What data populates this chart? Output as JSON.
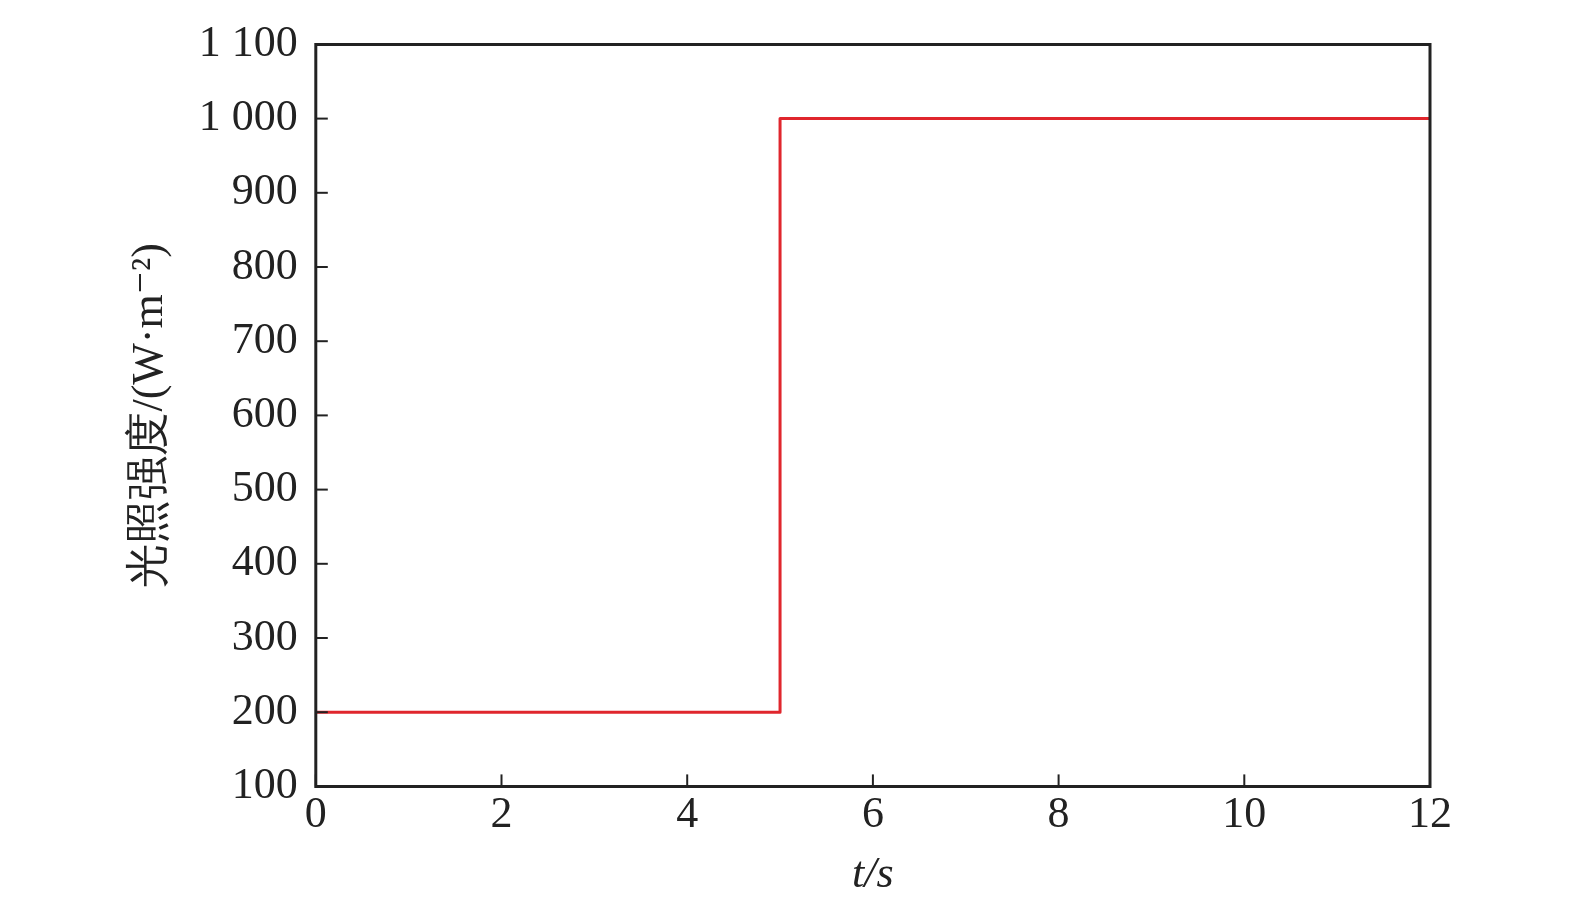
{
  "chart_data": {
    "type": "step",
    "xlabel": "t/s",
    "ylabel": "光照强度/(W·m⁻²)",
    "x": [
      0,
      5,
      12
    ],
    "series": [
      {
        "color": "#e0262d",
        "values": [
          200,
          1000,
          1000
        ]
      }
    ],
    "xlim": [
      0,
      12
    ],
    "xticks": [
      0,
      2,
      4,
      6,
      8,
      10,
      12
    ],
    "ylim": [
      100,
      1100
    ],
    "yticks": [
      100,
      200,
      300,
      400,
      500,
      600,
      700,
      800,
      900,
      {
        "value": 1000,
        "label": "1 000"
      },
      {
        "value": 1100,
        "label": "1 100"
      }
    ],
    "grid": false,
    "legend": false,
    "marker": "none",
    "line_style": "solid"
  }
}
